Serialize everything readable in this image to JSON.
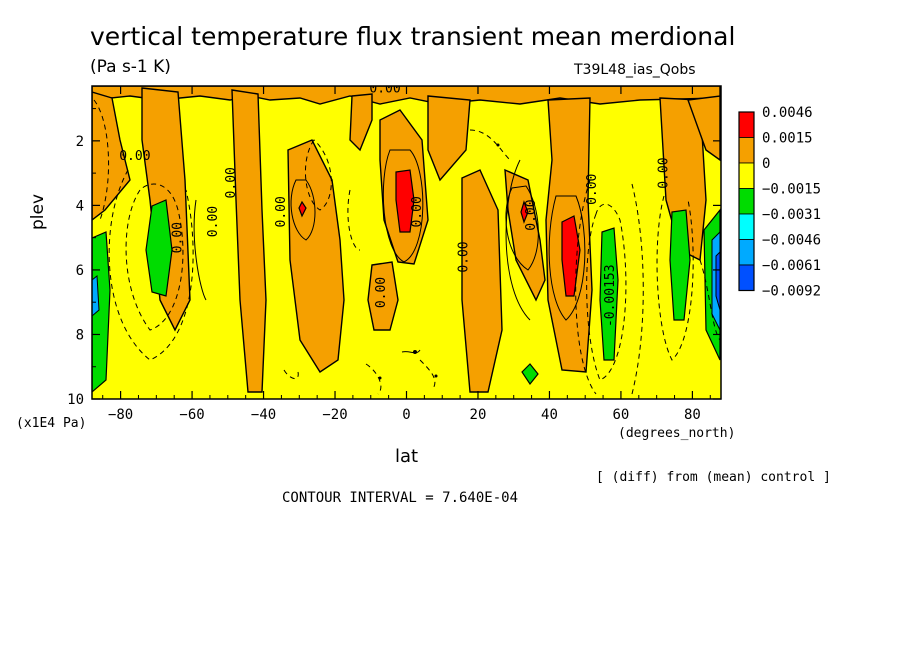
{
  "title": "vertical temperature flux transient mean merdional",
  "units": "(Pa s-1 K)",
  "run_label": "T39L48_ias_Qobs",
  "note": "[ (diff) from (mean) control ]",
  "contour_interval": "CONTOUR INTERVAL = 7.640E-04",
  "chart_data": {
    "type": "heatmap",
    "xlabel": "lat",
    "xunit": "(degrees_north)",
    "ylabel": "plev",
    "yunit": "(x1E4 Pa)",
    "xlim": [
      -88,
      88
    ],
    "ylim": [
      10,
      0.3
    ],
    "xticks": [
      -80,
      -60,
      -40,
      -20,
      0,
      20,
      40,
      60,
      80
    ],
    "yticks": [
      2,
      4,
      6,
      8,
      10
    ],
    "legend": [
      {
        "label": "0.0046",
        "color": "#ff0000"
      },
      {
        "label": "0.0015",
        "color": "#f5a000"
      },
      {
        "label": "0",
        "color": "#ffff00"
      },
      {
        "label": "−0.0015",
        "color": "#00dc00"
      },
      {
        "label": "−0.0031",
        "color": "#00ffff"
      },
      {
        "label": "−0.0046",
        "color": "#00aaff"
      },
      {
        "label": "−0.0061",
        "color": "#0050ff"
      },
      {
        "label": "−0.0092",
        "color": ""
      }
    ],
    "contour_labels": [
      {
        "text": "0.00",
        "lat": -6,
        "plev": 0.5,
        "rot": 0
      },
      {
        "text": "0.00",
        "lat": -76,
        "plev": 2.6,
        "rot": 0
      },
      {
        "text": "0.00",
        "lat": -48,
        "plev": 3.3,
        "rot": -90
      },
      {
        "text": "0.00",
        "lat": -53,
        "plev": 4.5,
        "rot": -90
      },
      {
        "text": "0.00",
        "lat": -63,
        "plev": 5.0,
        "rot": -90
      },
      {
        "text": "0.00",
        "lat": -34,
        "plev": 4.2,
        "rot": -90
      },
      {
        "text": "0.00",
        "lat": 4,
        "plev": 4.2,
        "rot": -90
      },
      {
        "text": "0.00",
        "lat": 36,
        "plev": 4.3,
        "rot": -90
      },
      {
        "text": "0.00",
        "lat": 53,
        "plev": 3.5,
        "rot": -90
      },
      {
        "text": "0.00",
        "lat": 73,
        "plev": 3.0,
        "rot": -90
      },
      {
        "text": "0.00",
        "lat": 17,
        "plev": 5.6,
        "rot": -90
      },
      {
        "text": "0.00",
        "lat": -6,
        "plev": 6.7,
        "rot": -90
      },
      {
        "text": "-0.00153",
        "lat": 58,
        "plev": 6.8,
        "rot": -90
      }
    ]
  }
}
